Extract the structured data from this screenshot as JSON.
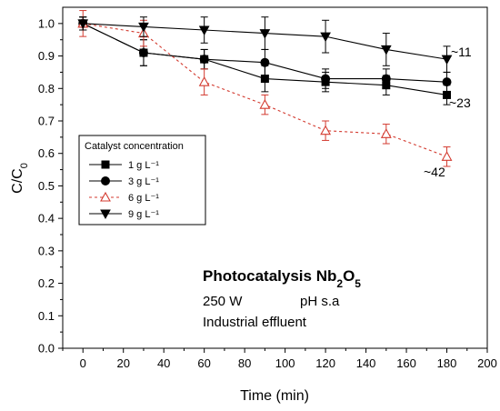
{
  "chart_data": {
    "type": "line",
    "xlabel": "Time (min)",
    "ylabel_base": "C/C",
    "ylabel_sub": "0",
    "xlim": [
      -10,
      200
    ],
    "ylim": [
      0.0,
      1.05
    ],
    "xticks": [
      0,
      20,
      40,
      60,
      80,
      100,
      120,
      140,
      160,
      180,
      200
    ],
    "yticks": [
      "0.0",
      "0.1",
      "0.2",
      "0.3",
      "0.4",
      "0.5",
      "0.6",
      "0.7",
      "0.8",
      "0.9",
      "1.0"
    ],
    "legend_title": "Catalyst concentration",
    "legend_position": "middle-left",
    "series": [
      {
        "name": "1 g L⁻¹",
        "marker": "square",
        "color": "#000000",
        "dash": "",
        "x": [
          0,
          30,
          60,
          90,
          120,
          150,
          180
        ],
        "y": [
          1.0,
          0.91,
          0.89,
          0.83,
          0.82,
          0.81,
          0.78
        ],
        "err": [
          0.02,
          0.04,
          0.03,
          0.04,
          0.03,
          0.03,
          0.03
        ]
      },
      {
        "name": "3 g L⁻¹",
        "marker": "circle",
        "color": "#000000",
        "dash": "",
        "x": [
          0,
          30,
          60,
          90,
          120,
          150,
          180
        ],
        "y": [
          1.0,
          0.91,
          0.89,
          0.88,
          0.83,
          0.83,
          0.82
        ],
        "err": [
          0.02,
          0.04,
          0.03,
          0.04,
          0.03,
          0.03,
          0.03
        ]
      },
      {
        "name": "6 g L⁻¹",
        "marker": "triangle-up-open",
        "color": "#d33a2f",
        "dash": "3,3",
        "x": [
          0,
          30,
          60,
          90,
          120,
          150,
          180
        ],
        "y": [
          1.0,
          0.97,
          0.82,
          0.75,
          0.67,
          0.66,
          0.59
        ],
        "err": [
          0.04,
          0.04,
          0.04,
          0.03,
          0.03,
          0.03,
          0.03
        ]
      },
      {
        "name": "9 g L⁻¹",
        "marker": "triangle-down",
        "color": "#000000",
        "dash": "",
        "x": [
          0,
          30,
          60,
          90,
          120,
          150,
          180
        ],
        "y": [
          1.0,
          0.99,
          0.98,
          0.97,
          0.96,
          0.92,
          0.89
        ],
        "err": [
          0.02,
          0.03,
          0.04,
          0.05,
          0.05,
          0.05,
          0.04
        ]
      }
    ],
    "end_labels": [
      "~11",
      "~23",
      "~42"
    ],
    "annotations": {
      "title_main": "Photocatalysis Nb",
      "title_sub1": "2",
      "title_mid": "O",
      "title_sub2": "5",
      "power": "250 W",
      "ph": "pH s.a",
      "effluent": "Industrial effluent"
    }
  }
}
